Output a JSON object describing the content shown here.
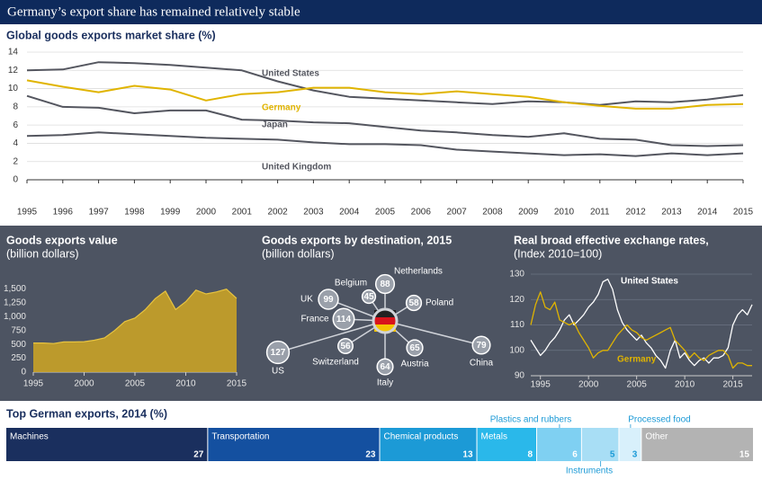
{
  "header": {
    "title": "Germany’s export share has remained relatively stable"
  },
  "chart_data": [
    {
      "type": "line",
      "title": "Global goods exports market share (%)",
      "x": [
        1995,
        1996,
        1997,
        1998,
        1999,
        2000,
        2001,
        2002,
        2003,
        2004,
        2005,
        2006,
        2007,
        2008,
        2009,
        2010,
        2011,
        2012,
        2013,
        2014,
        2015
      ],
      "xlim": [
        1995,
        2015
      ],
      "xticks": [
        1995,
        1996,
        1997,
        1998,
        1999,
        2000,
        2001,
        2002,
        2003,
        2004,
        2005,
        2006,
        2007,
        2008,
        2009,
        2010,
        2011,
        2012,
        2013,
        2014,
        2015
      ],
      "ylim": [
        0,
        14
      ],
      "yticks": [
        0,
        2,
        4,
        6,
        8,
        10,
        12,
        14
      ],
      "grid": true,
      "series": [
        {
          "name": "United States",
          "color": "#54565f",
          "values": [
            12.0,
            12.1,
            12.9,
            12.8,
            12.6,
            12.3,
            12.0,
            10.8,
            9.8,
            9.1,
            8.9,
            8.7,
            8.5,
            8.3,
            8.6,
            8.5,
            8.2,
            8.6,
            8.5,
            8.8,
            9.3
          ]
        },
        {
          "name": "Germany",
          "color": "#e0b400",
          "values": [
            10.9,
            10.2,
            9.6,
            10.3,
            9.9,
            8.7,
            9.4,
            9.6,
            10.1,
            10.1,
            9.6,
            9.4,
            9.7,
            9.4,
            9.1,
            8.5,
            8.1,
            7.8,
            7.8,
            8.2,
            8.3
          ]
        },
        {
          "name": "Japan",
          "color": "#54565f",
          "values": [
            9.2,
            8.0,
            7.9,
            7.3,
            7.6,
            7.6,
            6.6,
            6.5,
            6.3,
            6.2,
            5.8,
            5.4,
            5.2,
            4.9,
            4.7,
            5.1,
            4.5,
            4.4,
            3.8,
            3.7,
            3.8
          ]
        },
        {
          "name": "United Kingdom",
          "color": "#54565f",
          "values": [
            4.8,
            4.9,
            5.2,
            5.0,
            4.8,
            4.6,
            4.5,
            4.4,
            4.1,
            3.9,
            3.9,
            3.8,
            3.3,
            3.1,
            2.9,
            2.7,
            2.8,
            2.6,
            2.9,
            2.7,
            2.9
          ]
        }
      ]
    },
    {
      "type": "area",
      "title": "Goods exports value",
      "subtitle": "(billion dollars)",
      "x": [
        1995,
        1996,
        1997,
        1998,
        1999,
        2000,
        2001,
        2002,
        2003,
        2004,
        2005,
        2006,
        2007,
        2008,
        2009,
        2010,
        2011,
        2012,
        2013,
        2014,
        2015
      ],
      "values": [
        525,
        525,
        515,
        545,
        545,
        550,
        575,
        615,
        750,
        910,
        975,
        1125,
        1325,
        1460,
        1130,
        1270,
        1480,
        1410,
        1445,
        1495,
        1330
      ],
      "color": "#c9a227",
      "xlim": [
        1995,
        2015
      ],
      "xticks": [
        1995,
        2000,
        2005,
        2010,
        2015
      ],
      "ylim": [
        0,
        1750
      ],
      "yticks": [
        0,
        250,
        500,
        750,
        {
          "value": 1000,
          "label": "1,000"
        },
        {
          "value": 1250,
          "label": "1,250"
        },
        {
          "value": 1500,
          "label": "1,500"
        }
      ]
    },
    {
      "type": "hub",
      "title": "Goods exports by destination, 2015",
      "subtitle": "(billion dollars)",
      "categories": [
        "Netherlands",
        "Belgium",
        "UK",
        "France",
        "Poland",
        "Switzerland",
        "Italy",
        "Austria",
        "China",
        "US"
      ],
      "values": [
        88,
        45,
        99,
        114,
        58,
        56,
        64,
        65,
        79,
        127
      ],
      "color": "#9aa0aa"
    },
    {
      "type": "line",
      "title": "Real broad effective exchange rates,",
      "subtitle": "(Index 2010=100)",
      "x": [
        1994,
        1994.5,
        1995,
        1995.5,
        1996,
        1996.5,
        1997,
        1997.5,
        1998,
        1998.5,
        1999,
        1999.5,
        2000,
        2000.5,
        2001,
        2001.5,
        2002,
        2002.5,
        2003,
        2003.5,
        2004,
        2004.5,
        2005,
        2005.5,
        2006,
        2006.5,
        2007,
        2007.5,
        2008,
        2008.5,
        2009,
        2009.5,
        2010,
        2010.5,
        2011,
        2011.5,
        2012,
        2012.5,
        2013,
        2013.5,
        2014,
        2014.5,
        2015,
        2015.5,
        2016,
        2016.5,
        2017
      ],
      "xlim": [
        1994,
        2017
      ],
      "xticks": [
        1995,
        2000,
        2005,
        2010,
        2015
      ],
      "ylim": [
        90,
        130
      ],
      "yticks": [
        90,
        100,
        110,
        120,
        130
      ],
      "grid": true,
      "series": [
        {
          "name": "United States",
          "color": "#ffffff",
          "values": [
            104,
            101,
            98,
            100,
            103,
            105,
            108,
            112,
            114,
            110,
            112,
            114,
            117,
            119,
            122,
            127,
            128,
            124,
            116,
            111,
            108,
            106,
            104,
            106,
            103,
            101,
            98,
            96,
            93,
            100,
            104,
            97,
            99,
            96,
            94,
            96,
            97,
            95,
            97,
            97,
            98,
            101,
            110,
            114,
            116,
            114,
            118
          ]
        },
        {
          "name": "Germany",
          "color": "#e0b400",
          "values": [
            110,
            118,
            123,
            117,
            116,
            119,
            112,
            111,
            110,
            111,
            107,
            104,
            101,
            97,
            99,
            100,
            100,
            103,
            106,
            108,
            110,
            108,
            107,
            105,
            104,
            105,
            106,
            107,
            108,
            109,
            104,
            102,
            100,
            97,
            99,
            97,
            96,
            98,
            99,
            100,
            100,
            98,
            93,
            95,
            95,
            94,
            94
          ]
        }
      ]
    },
    {
      "type": "stacked_bar",
      "title": "Top German exports, 2014 (%)",
      "categories": [
        "Machines",
        "Transportation",
        "Chemical products",
        "Metals",
        "Plastics and rubbers",
        "Instruments",
        "Processed food",
        "Other"
      ],
      "values": [
        27,
        23,
        13,
        8,
        6,
        5,
        3,
        15
      ],
      "colors": [
        "#1a2f5e",
        "#1450a0",
        "#1c9ad6",
        "#2ab8ea",
        "#7fd0f2",
        "#a8def5",
        "#d8f0fb",
        "#b3b3b3"
      ]
    }
  ]
}
